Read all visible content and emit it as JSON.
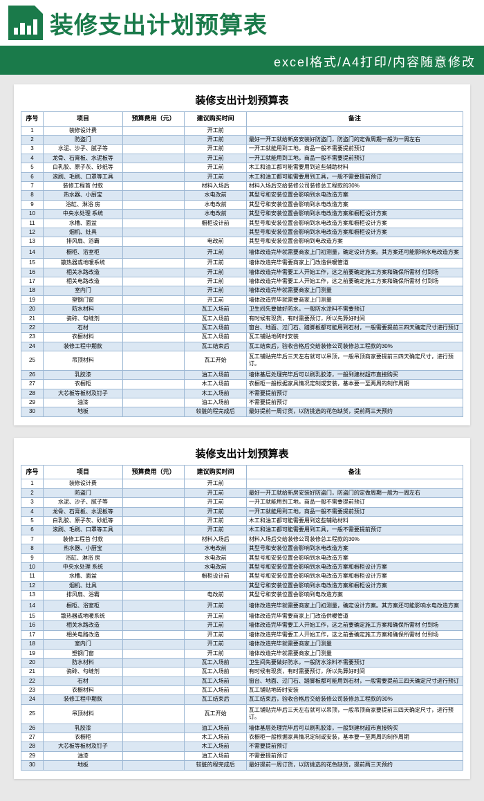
{
  "banner": {
    "title": "装修支出计划预算表",
    "subtitle": "excel格式/A4打印/内容随意修改"
  },
  "sheet_title": "装修支出计划预算表",
  "columns": {
    "idx": "序号",
    "item": "项目",
    "cost": "预算费用（元）",
    "time": "建议购买时间",
    "note": "备注"
  },
  "col_widths": {
    "idx": "5%",
    "item": "18%",
    "cost": "14%",
    "time": "14%",
    "note": "49%"
  },
  "colors": {
    "accent": "#1a7a4a",
    "row_alt": "#dbe7f3",
    "border": "#9db8d4"
  },
  "rows": [
    {
      "n": 1,
      "item": "装修设计费",
      "time": "开工前",
      "note": ""
    },
    {
      "n": 2,
      "item": "防盗门",
      "time": "开工前",
      "note": "最好一开工就给新房安装好防盗门，防盗门的定做周期一般为一周左右"
    },
    {
      "n": 3,
      "item": "水泥、沙子、腻子等",
      "time": "开工前",
      "note": "一开工就能用到工地，商品一般不需要提前预订"
    },
    {
      "n": 4,
      "item": "龙骨、石膏板、水泥板等",
      "time": "开工前",
      "note": "一开工就能用到工地，商品一般不需要提前预订"
    },
    {
      "n": 5,
      "item": "白乳胶、原子灰、砂纸等",
      "time": "开工前",
      "note": "木工和油工都可能需要用到这些辅助材料"
    },
    {
      "n": 6,
      "item": "滚刷、毛刷、口罩等工具",
      "time": "开工前",
      "note": "木工和油工都可能需要用到工具，一般不需要提前预订"
    },
    {
      "n": 7,
      "item": "装修工程首 付款",
      "time": "材料入场后",
      "note": "材料入场后交给装修公司装修总工程款的30%"
    },
    {
      "n": 8,
      "item": "热水器、小厨宝",
      "time": "水电改前",
      "note": "其型号和安装位置会影响到水电改造方案"
    },
    {
      "n": 9,
      "item": "浴缸、淋浴 房",
      "time": "水电改前",
      "note": "其型号和安装位置会影响到水电改造方案"
    },
    {
      "n": 10,
      "item": "中央水处理 系统",
      "time": "水电改前",
      "note": "其型号和安装位置会影响到水电改造方案和橱柜设计方案"
    },
    {
      "n": 11,
      "item": "水槽、面盆",
      "time": "橱柜设计前",
      "note": "其型号和安装位置会影响到水电改造方案和橱柜设计方案"
    },
    {
      "n": 12,
      "item": "烟机、灶具",
      "time": "",
      "note": "其型号和安装位置会影响到水电改造方案和橱柜设计方案"
    },
    {
      "n": 13,
      "item": "排风扇、浴霸",
      "time": "电改前",
      "note": "其型号和安装位置会影响到电改造方案"
    },
    {
      "n": 14,
      "item": "橱柜、浴室柜",
      "time": "开工前",
      "note": "墙体改造完毕就需要商家上门初测量，确定设计方案。其方案还可能影响水电改造方案",
      "tall": true
    },
    {
      "n": 15,
      "item": "散热器或地暖系统",
      "time": "开工前",
      "note": "墙体改造完毕需要商家上门改造供暖管道"
    },
    {
      "n": 16,
      "item": "相关水路改造",
      "time": "开工前",
      "note": "墙体改造完毕需要工人开始工作，这之前要确定施工方案和确保所需材 付到场"
    },
    {
      "n": 17,
      "item": "相关电路改造",
      "time": "开工前",
      "note": "墙体改造完毕需要工人开始工作，这之前要确定施工方案和确保所需材 付到场"
    },
    {
      "n": 18,
      "item": "室内门",
      "time": "开工前",
      "note": "墙体改造完毕就需要商家上门测量"
    },
    {
      "n": 19,
      "item": "塑钢门窗",
      "time": "开工前",
      "note": "墙体改造完毕就需要商家上门测量"
    },
    {
      "n": 20,
      "item": "防水材料",
      "time": "瓦工入场前",
      "note": "卫生间先要做好防水，一般防水涂料不需要预订"
    },
    {
      "n": 21,
      "item": "瓷砖、勾缝剂",
      "time": "瓦工入场前",
      "note": "有时候有现货，有时需要预订，所以先算好时间"
    },
    {
      "n": 22,
      "item": "石材",
      "time": "瓦工入场前",
      "note": "窗台、地面、过门石、踏脚板都可能用到石材，一般需要提前三四天确定尺寸进行预订"
    },
    {
      "n": 23,
      "item": "衣橱材料",
      "time": "瓦工入场前",
      "note": "瓦工铺贴地砖时安装"
    },
    {
      "n": 24,
      "item": "装修工程中期款",
      "time": "瓦工结束后",
      "note": "瓦工结束后，验收合格后交给装修公司装修总工程款的30%"
    },
    {
      "n": 25,
      "item": "吊顶材料",
      "time": "瓦工开始",
      "note": "瓦工铺贴完毕后三天左右就可以吊顶，一般吊顶商家要提前三四天确定尺寸，进行预订。",
      "tall": true
    },
    {
      "n": 26,
      "item": "乳胶漆",
      "time": "油工入场前",
      "note": "墙体基层处理完毕后可以刷乳胶漆，一般到建材超市直接购买"
    },
    {
      "n": 27,
      "item": "衣橱柜",
      "time": "木工入场前",
      "note": "衣橱柜一般根据家具情况定制或安装，基本要一至两周的制作周期"
    },
    {
      "n": 28,
      "item": "大芯板等板材及钉子",
      "time": "木工入场前",
      "note": "不需要提前预订"
    },
    {
      "n": 29,
      "item": "油漆",
      "time": "油工入场前",
      "note": "不需要提前预订"
    },
    {
      "n": 30,
      "item": "地板",
      "time": "较脏的程完成后",
      "note": "最好提前一周订货，以防挑选的花色缺货，提前两三天预约"
    }
  ]
}
